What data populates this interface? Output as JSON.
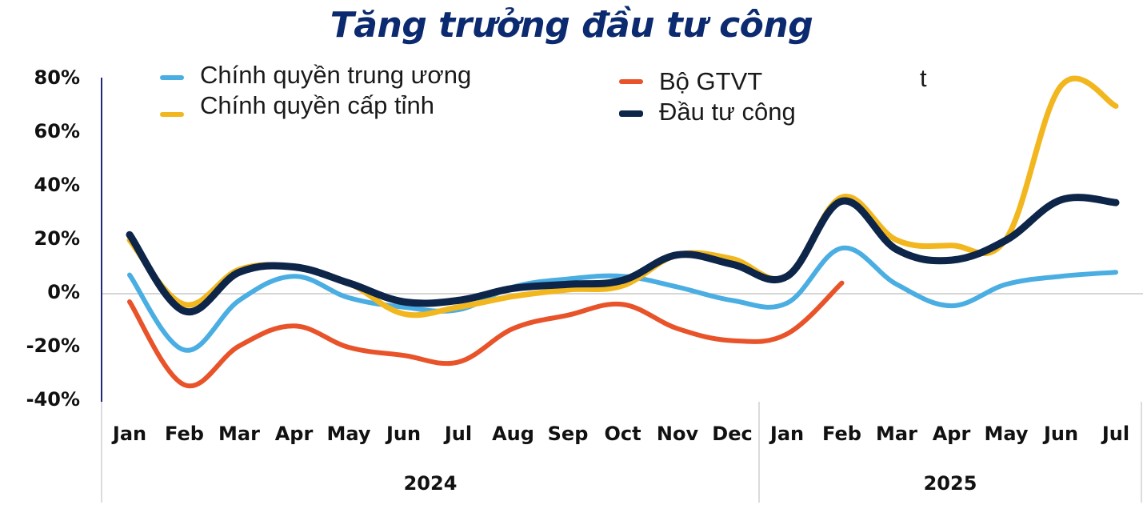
{
  "title": "Tăng trưởng đầu tư công",
  "legend": [
    {
      "key": "trung_uong",
      "label": "Chính quyền trung ương",
      "color": "#4aaee3",
      "icon": "line-swatch-icon"
    },
    {
      "key": "cap_tinh",
      "label": "Chính quyền cấp tỉnh",
      "color": "#f2b71e",
      "icon": "line-swatch-icon"
    },
    {
      "key": "gtvt",
      "label": "Bộ GTVT",
      "color": "#e8532a",
      "icon": "line-swatch-icon"
    },
    {
      "key": "dau_tu_cong",
      "label": "Đầu tư công",
      "color": "#0d2548",
      "icon": "line-swatch-icon"
    }
  ],
  "stray_text": "t",
  "chart_data": {
    "type": "line",
    "title": "Tăng trưởng đầu tư công",
    "xlabel": "",
    "ylabel": "",
    "ylim": [
      -40,
      80
    ],
    "yticks": [
      "80%",
      "60%",
      "40%",
      "20%",
      "0%",
      "-20%",
      "-40%"
    ],
    "ytick_values": [
      80,
      60,
      40,
      20,
      0,
      -20,
      -40
    ],
    "grid": false,
    "legend_position": "top",
    "categories": [
      "Jan",
      "Feb",
      "Mar",
      "Apr",
      "May",
      "Jun",
      "Jul",
      "Aug",
      "Sep",
      "Oct",
      "Nov",
      "Dec",
      "Jan",
      "Feb",
      "Mar",
      "Apr",
      "May",
      "Jun",
      "Jul"
    ],
    "year_groups": [
      {
        "label": "2024",
        "start": 0,
        "end": 11
      },
      {
        "label": "2025",
        "start": 12,
        "end": 18
      }
    ],
    "series": [
      {
        "name": "Chính quyền trung ương",
        "color": "#4aaee3",
        "width": 6,
        "values": [
          7,
          -21,
          -2.5,
          6.5,
          -1.5,
          -5,
          -6,
          2.5,
          5.5,
          6.5,
          2.5,
          -2.5,
          -3.5,
          17,
          3.5,
          -4.5,
          3.5,
          6.5,
          8
        ]
      },
      {
        "name": "Chính quyền cấp tỉnh",
        "color": "#f2b71e",
        "width": 7,
        "values": [
          20,
          -4,
          9,
          10,
          4,
          -7.5,
          -5,
          -1,
          1.5,
          3,
          14.5,
          13,
          6.5,
          36,
          20,
          18,
          20.5,
          77.5,
          70
        ]
      },
      {
        "name": "Bộ GTVT",
        "color": "#e8532a",
        "width": 6,
        "values": [
          -3,
          -34,
          -19.5,
          -12,
          -20,
          -23,
          -25.5,
          -13,
          -8,
          -4,
          -13,
          -17.5,
          -15,
          4,
          null,
          null,
          null,
          null,
          null
        ]
      },
      {
        "name": "Đầu tư công",
        "color": "#0d2548",
        "width": 9,
        "values": [
          22,
          -6.5,
          8,
          10,
          4,
          -3,
          -2.5,
          2,
          3.5,
          5,
          14.5,
          11,
          6.5,
          34.5,
          16.5,
          12.5,
          20,
          35,
          34
        ]
      }
    ]
  }
}
